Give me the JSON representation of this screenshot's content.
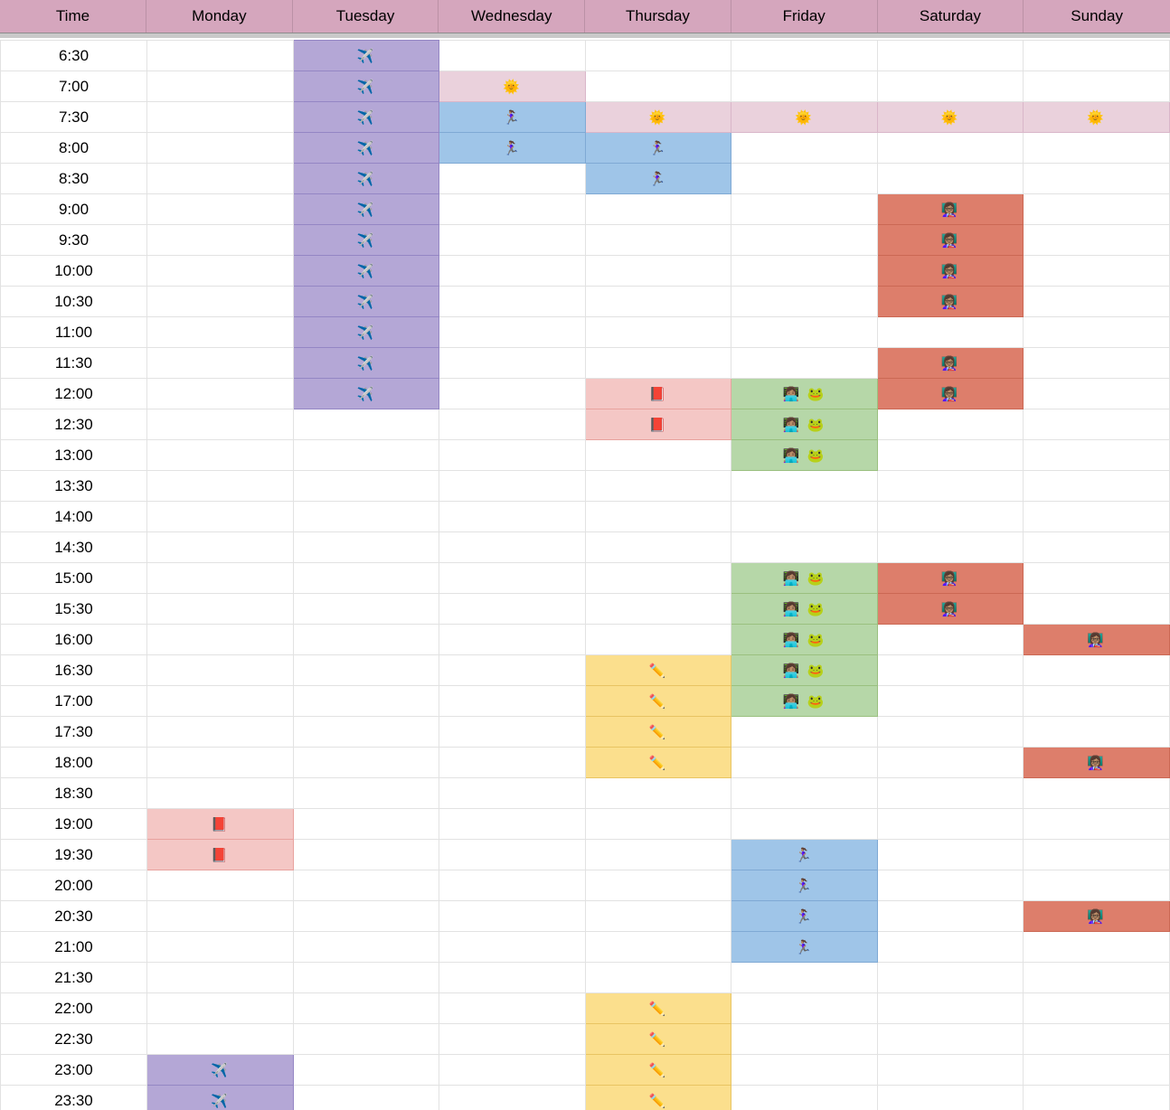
{
  "header": {
    "columns": [
      "Time",
      "Monday",
      "Tuesday",
      "Wednesday",
      "Thursday",
      "Friday",
      "Saturday",
      "Sunday"
    ],
    "bg_color": "#D5A6BD",
    "border_color": "#8D8D8D"
  },
  "grid": {
    "line_color": "#E2E2E2",
    "frozen_shadow_color": "#C9C9C9"
  },
  "activities": {
    "flight": {
      "icon": "airplane-icon",
      "emoji": "✈️",
      "bg": "#B4A7D6",
      "border": "#9486C4"
    },
    "sun": {
      "icon": "sun-with-face-icon",
      "emoji": "🌞",
      "bg": "#EAD1DC",
      "border": "#D9B6C9"
    },
    "run": {
      "icon": "woman-running-icon",
      "emoji": "🏃🏽‍♀️",
      "bg": "#9FC5E8",
      "border": "#7FA9D4"
    },
    "teach": {
      "icon": "woman-teacher-icon",
      "emoji": "👩🏽‍🏫",
      "bg": "#DD7E6B",
      "border": "#CB6854"
    },
    "read": {
      "icon": "closed-book-icon",
      "emoji": "📕",
      "bg": "#F4C7C5",
      "border": "#E8A29E"
    },
    "code": {
      "icon": "woman-technologist-and-frog-icon",
      "emoji": "👩🏽‍💻 🐸",
      "bg": "#B6D7A8",
      "border": "#9AC07F"
    },
    "write": {
      "icon": "pencil-icon",
      "emoji": "✏️",
      "bg": "#FBDF8D",
      "border": "#E8C463"
    }
  },
  "rows": [
    {
      "time": "6:30",
      "cells": [
        "",
        "flight",
        "",
        "",
        "",
        "",
        ""
      ]
    },
    {
      "time": "7:00",
      "cells": [
        "",
        "flight",
        "sun",
        "",
        "",
        "",
        ""
      ]
    },
    {
      "time": "7:30",
      "cells": [
        "",
        "flight",
        "run",
        "sun",
        "sun",
        "sun",
        "sun"
      ]
    },
    {
      "time": "8:00",
      "cells": [
        "",
        "flight",
        "run",
        "run",
        "",
        "",
        ""
      ]
    },
    {
      "time": "8:30",
      "cells": [
        "",
        "flight",
        "",
        "run",
        "",
        "",
        ""
      ]
    },
    {
      "time": "9:00",
      "cells": [
        "",
        "flight",
        "",
        "",
        "",
        "teach",
        ""
      ]
    },
    {
      "time": "9:30",
      "cells": [
        "",
        "flight",
        "",
        "",
        "",
        "teach",
        ""
      ]
    },
    {
      "time": "10:00",
      "cells": [
        "",
        "flight",
        "",
        "",
        "",
        "teach",
        ""
      ]
    },
    {
      "time": "10:30",
      "cells": [
        "",
        "flight",
        "",
        "",
        "",
        "teach",
        ""
      ]
    },
    {
      "time": "11:00",
      "cells": [
        "",
        "flight",
        "",
        "",
        "",
        "",
        ""
      ]
    },
    {
      "time": "11:30",
      "cells": [
        "",
        "flight",
        "",
        "",
        "",
        "teach",
        ""
      ]
    },
    {
      "time": "12:00",
      "cells": [
        "",
        "flight",
        "",
        "read",
        "code",
        "teach",
        ""
      ]
    },
    {
      "time": "12:30",
      "cells": [
        "",
        "",
        "",
        "read",
        "code",
        "",
        ""
      ]
    },
    {
      "time": "13:00",
      "cells": [
        "",
        "",
        "",
        "",
        "code",
        "",
        ""
      ]
    },
    {
      "time": "13:30",
      "cells": [
        "",
        "",
        "",
        "",
        "",
        "",
        ""
      ]
    },
    {
      "time": "14:00",
      "cells": [
        "",
        "",
        "",
        "",
        "",
        "",
        ""
      ]
    },
    {
      "time": "14:30",
      "cells": [
        "",
        "",
        "",
        "",
        "",
        "",
        ""
      ]
    },
    {
      "time": "15:00",
      "cells": [
        "",
        "",
        "",
        "",
        "code",
        "teach",
        ""
      ]
    },
    {
      "time": "15:30",
      "cells": [
        "",
        "",
        "",
        "",
        "code",
        "teach",
        ""
      ]
    },
    {
      "time": "16:00",
      "cells": [
        "",
        "",
        "",
        "",
        "code",
        "",
        "teach"
      ]
    },
    {
      "time": "16:30",
      "cells": [
        "",
        "",
        "",
        "write",
        "code",
        "",
        ""
      ]
    },
    {
      "time": "17:00",
      "cells": [
        "",
        "",
        "",
        "write",
        "code",
        "",
        ""
      ]
    },
    {
      "time": "17:30",
      "cells": [
        "",
        "",
        "",
        "write",
        "",
        "",
        ""
      ]
    },
    {
      "time": "18:00",
      "cells": [
        "",
        "",
        "",
        "write",
        "",
        "",
        "teach"
      ]
    },
    {
      "time": "18:30",
      "cells": [
        "",
        "",
        "",
        "",
        "",
        "",
        ""
      ]
    },
    {
      "time": "19:00",
      "cells": [
        "read",
        "",
        "",
        "",
        "",
        "",
        ""
      ]
    },
    {
      "time": "19:30",
      "cells": [
        "read",
        "",
        "",
        "",
        "run",
        "",
        ""
      ]
    },
    {
      "time": "20:00",
      "cells": [
        "",
        "",
        "",
        "",
        "run",
        "",
        ""
      ]
    },
    {
      "time": "20:30",
      "cells": [
        "",
        "",
        "",
        "",
        "run",
        "",
        "teach"
      ]
    },
    {
      "time": "21:00",
      "cells": [
        "",
        "",
        "",
        "",
        "run",
        "",
        ""
      ]
    },
    {
      "time": "21:30",
      "cells": [
        "",
        "",
        "",
        "",
        "",
        "",
        ""
      ]
    },
    {
      "time": "22:00",
      "cells": [
        "",
        "",
        "",
        "write",
        "",
        "",
        ""
      ]
    },
    {
      "time": "22:30",
      "cells": [
        "",
        "",
        "",
        "write",
        "",
        "",
        ""
      ]
    },
    {
      "time": "23:00",
      "cells": [
        "flight",
        "",
        "",
        "write",
        "",
        "",
        ""
      ]
    },
    {
      "time": "23:30",
      "cells": [
        "flight",
        "",
        "",
        "write",
        "",
        "",
        ""
      ]
    }
  ]
}
